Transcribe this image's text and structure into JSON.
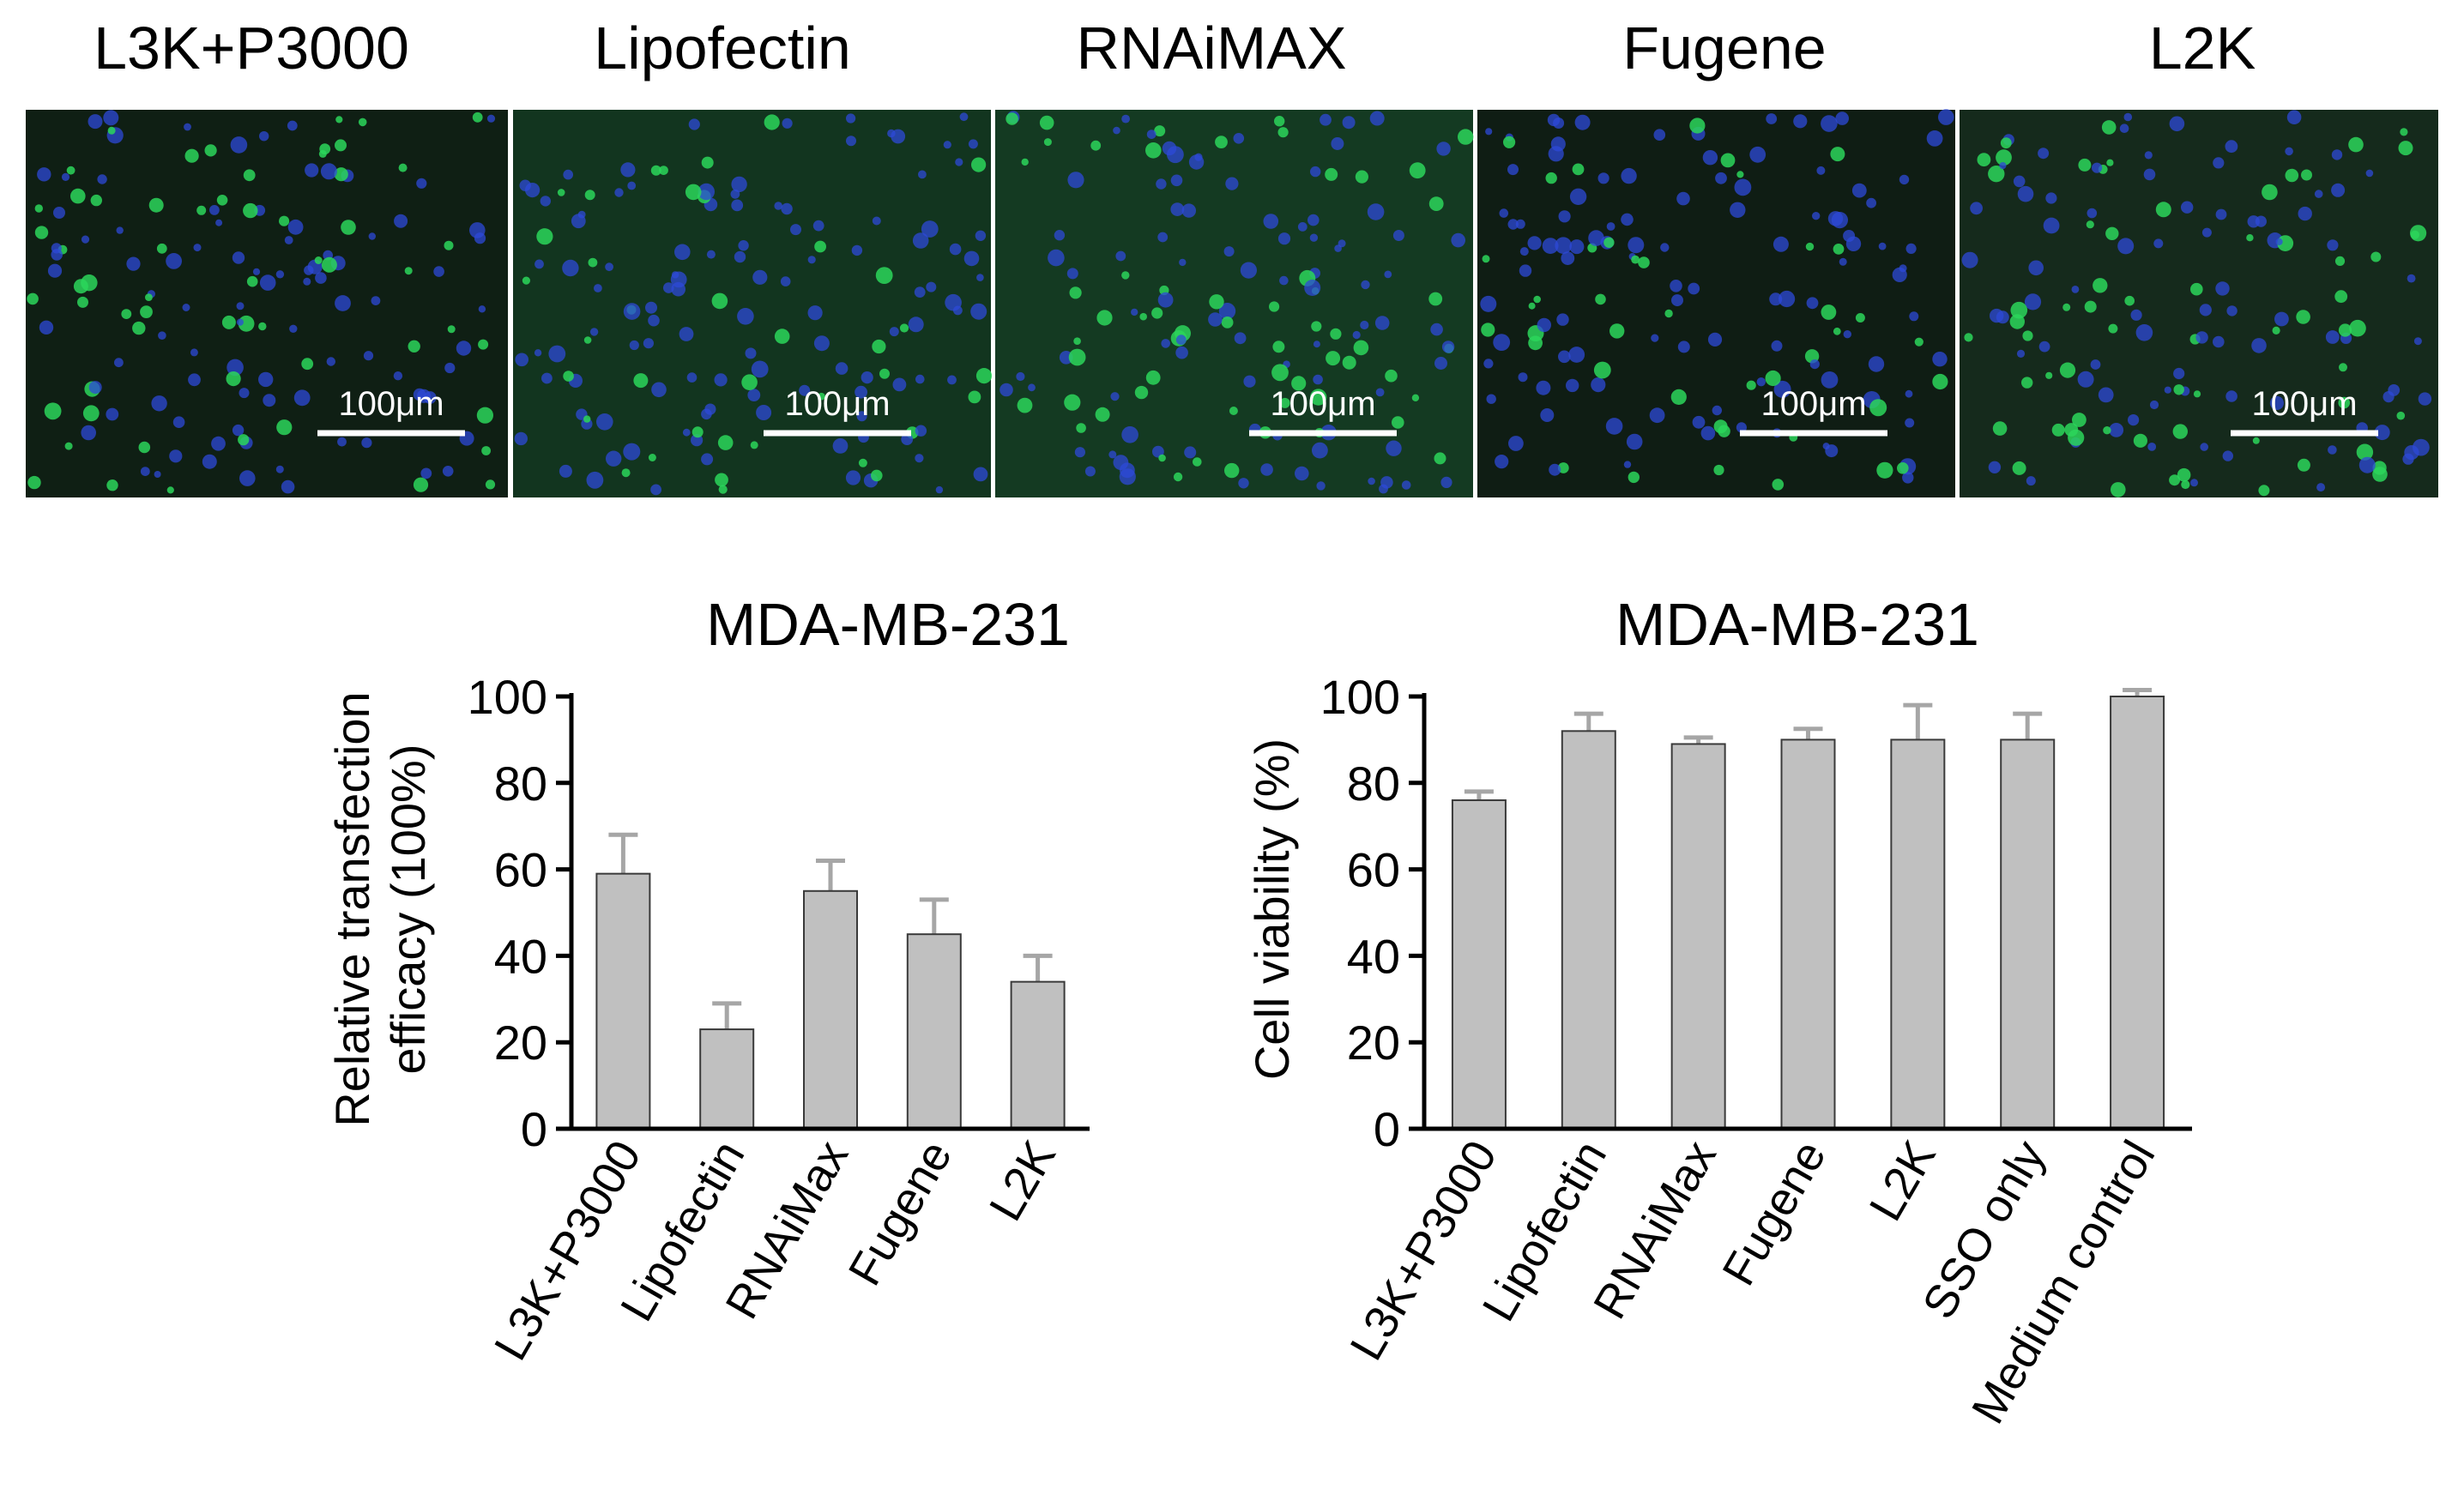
{
  "micrographs": [
    {
      "label": "L3K+P3000",
      "scalebar": "100μm"
    },
    {
      "label": "Lipofectin",
      "scalebar": "100μm"
    },
    {
      "label": "RNAiMAX",
      "scalebar": "100μm"
    },
    {
      "label": "Fugene",
      "scalebar": "100μm"
    },
    {
      "label": "L2K",
      "scalebar": "100μm"
    }
  ],
  "colors": {
    "bar_fill": "#c0c0c0",
    "bar_stroke": "#3a3a3a",
    "error_bar": "#a6a6a6",
    "axis": "#000000",
    "image_background": "#0f1f14",
    "cell_nucleus": "#2e4ad8",
    "cell_signal": "#2bd65a",
    "scalebar": "#ffffff"
  },
  "chart_data": [
    {
      "type": "bar",
      "title": "MDA-MB-231",
      "xlabel": "",
      "ylabel": [
        "Relative transfection",
        "efficacy (100%)"
      ],
      "ylim": [
        0,
        100
      ],
      "yticks": [
        "0",
        "20",
        "40",
        "60",
        "80",
        "100"
      ],
      "categories": [
        "L3K+P3000",
        "Lipofectin",
        "RNAiMax",
        "Fugene",
        "L2K"
      ],
      "values": [
        59,
        23,
        55,
        45,
        34
      ],
      "errors": [
        9,
        6,
        7,
        8,
        6
      ],
      "grid": false
    },
    {
      "type": "bar",
      "title": "MDA-MB-231",
      "xlabel": "",
      "ylabel": [
        "Cell viability (%)"
      ],
      "ylim": [
        0,
        100
      ],
      "yticks": [
        "0",
        "20",
        "40",
        "60",
        "80",
        "100"
      ],
      "categories": [
        "L3K+P3000",
        "Lipofectin",
        "RNAiMax",
        "Fugene",
        "L2K",
        "SSO only",
        "Medium control"
      ],
      "values": [
        76,
        92,
        89,
        90,
        90,
        90,
        100
      ],
      "errors": [
        2,
        4,
        1.5,
        2.5,
        8,
        6,
        1.5
      ],
      "grid": false
    }
  ]
}
